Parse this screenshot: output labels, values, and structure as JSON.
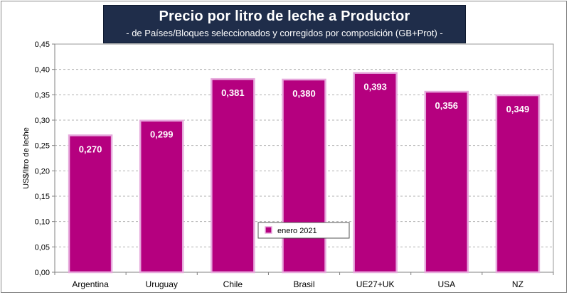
{
  "chart_data": {
    "type": "bar",
    "title": "Precio por litro de leche a Productor",
    "subtitle": "- de Países/Bloques seleccionados y corregidos por composición (GB+Prot) -",
    "ylabel": "US$/litro de leche",
    "xlabel": "",
    "ylim": [
      0,
      0.45
    ],
    "y_ticks": [
      "0,00",
      "0,05",
      "0,10",
      "0,15",
      "0,20",
      "0,25",
      "0,30",
      "0,35",
      "0,40",
      "0,45"
    ],
    "categories": [
      "Argentina",
      "Uruguay",
      "Chile",
      "Brasil",
      "UE27+UK",
      "USA",
      "NZ"
    ],
    "series": [
      {
        "name": "enero 2021",
        "values": [
          0.27,
          0.299,
          0.381,
          0.38,
          0.393,
          0.356,
          0.349
        ],
        "value_labels": [
          "0,270",
          "0,299",
          "0,381",
          "0,380",
          "0,393",
          "0,356",
          "0,349"
        ]
      }
    ],
    "bar_color": "#b5007f",
    "bar_edge_color": "#e6a8dc",
    "title_bg_color": "#1f2d4a",
    "plot_bg_color": "#ffffff",
    "grid": true,
    "legend_position": "bottom-center"
  }
}
